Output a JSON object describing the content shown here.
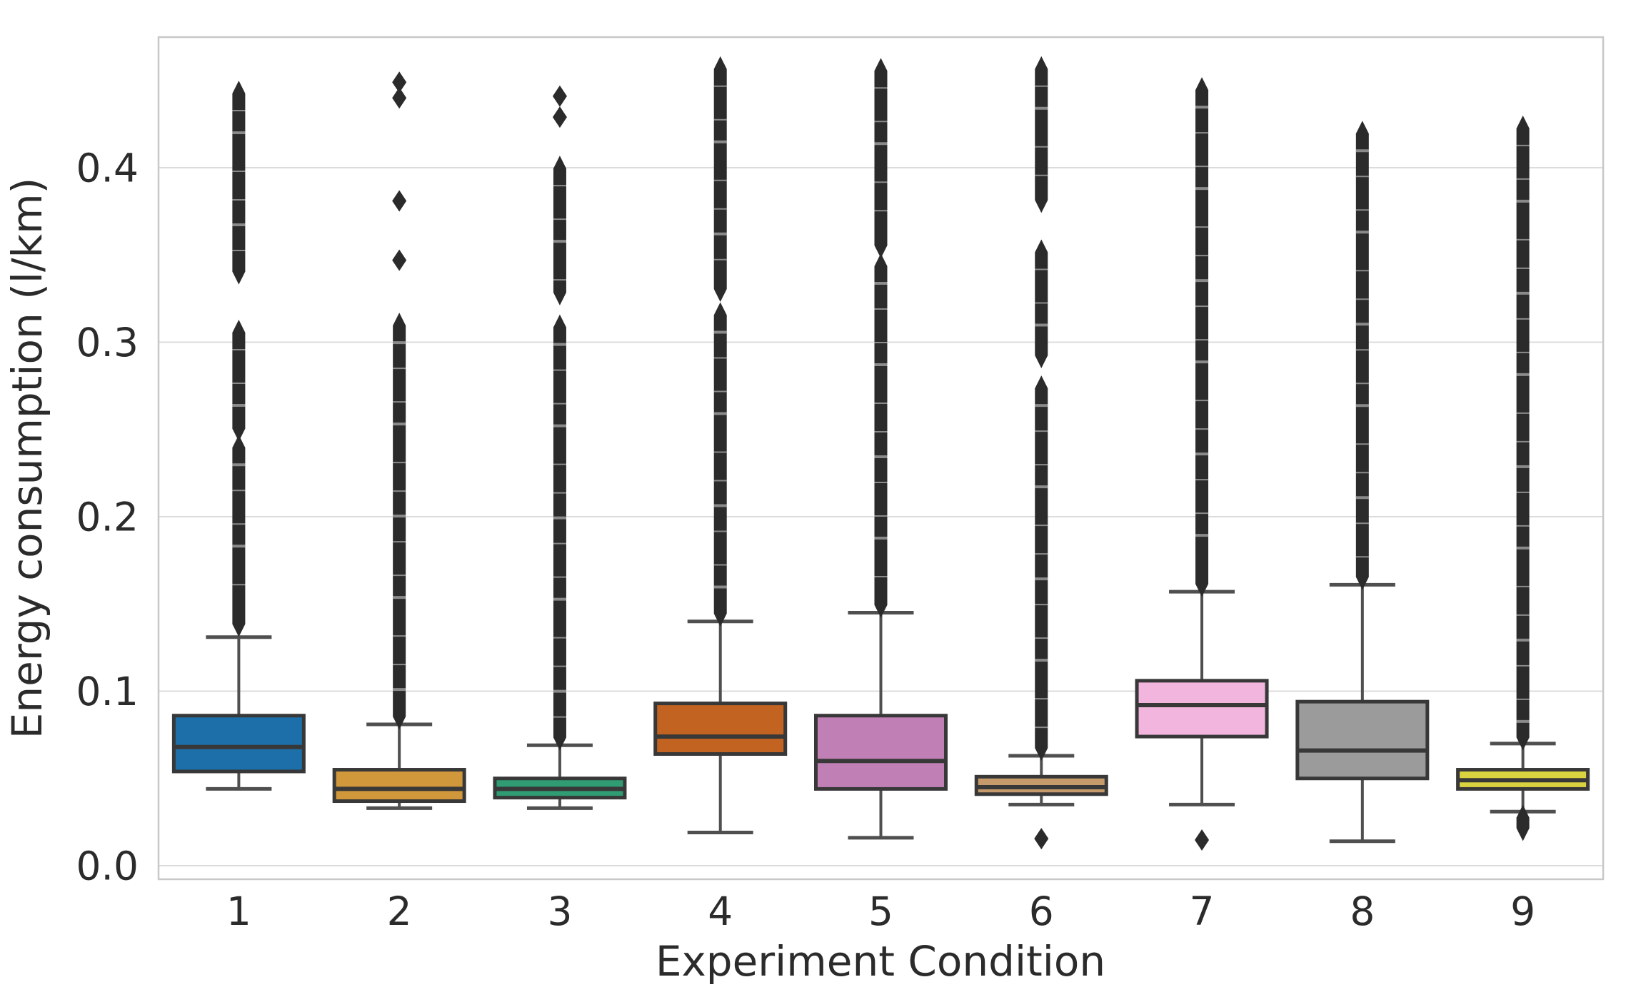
{
  "chart_data": {
    "type": "box",
    "title": "",
    "xlabel": "Experiment Condition",
    "ylabel": "Energy consumption (l/km)",
    "categories": [
      "1",
      "2",
      "3",
      "4",
      "5",
      "6",
      "7",
      "8",
      "9"
    ],
    "yticks": [
      "0.0",
      "0.1",
      "0.2",
      "0.3",
      "0.4"
    ],
    "ytick_values": [
      0.0,
      0.1,
      0.2,
      0.3,
      0.4
    ],
    "ylim": [
      -0.008,
      0.475
    ],
    "grid": true,
    "legend": false,
    "colors": {
      "background": "#ffffff",
      "grid": "#dcdcdc",
      "spine": "#c8c8c8",
      "whisker": "#4f4f4f",
      "box_edge": "#383838",
      "median": "#383838",
      "outlier": "#2b2b2b",
      "tick_text": "#2b2b2b"
    },
    "boxes": [
      {
        "label": "1",
        "color": "#1c6fa8",
        "whisker_low": 0.044,
        "q1": 0.054,
        "median": 0.068,
        "q3": 0.086,
        "whisker_high": 0.131,
        "outlier_segments": [
          [
            0.136,
            0.242
          ],
          [
            0.248,
            0.308
          ],
          [
            0.338,
            0.445
          ]
        ],
        "outlier_points": []
      },
      {
        "label": "2",
        "color": "#d0983a",
        "whisker_low": 0.033,
        "q1": 0.037,
        "median": 0.044,
        "q3": 0.055,
        "whisker_high": 0.081,
        "outlier_segments": [
          [
            0.083,
            0.312
          ]
        ],
        "outlier_points": [
          0.347,
          0.381,
          0.44,
          0.449
        ]
      },
      {
        "label": "3",
        "color": "#2f9c74",
        "whisker_low": 0.033,
        "q1": 0.039,
        "median": 0.044,
        "q3": 0.05,
        "whisker_high": 0.069,
        "outlier_segments": [
          [
            0.071,
            0.311
          ],
          [
            0.326,
            0.402
          ]
        ],
        "outlier_points": [
          0.429,
          0.441
        ]
      },
      {
        "label": "4",
        "color": "#c36321",
        "whisker_low": 0.019,
        "q1": 0.064,
        "median": 0.074,
        "q3": 0.093,
        "whisker_high": 0.14,
        "outlier_segments": [
          [
            0.142,
            0.318
          ],
          [
            0.328,
            0.459
          ]
        ],
        "outlier_points": []
      },
      {
        "label": "5",
        "color": "#c180b5",
        "whisker_low": 0.016,
        "q1": 0.044,
        "median": 0.06,
        "q3": 0.086,
        "whisker_high": 0.145,
        "outlier_segments": [
          [
            0.147,
            0.346
          ],
          [
            0.353,
            0.458
          ]
        ],
        "outlier_points": []
      },
      {
        "label": "6",
        "color": "#c79a6b",
        "whisker_low": 0.035,
        "q1": 0.041,
        "median": 0.045,
        "q3": 0.051,
        "whisker_high": 0.063,
        "outlier_segments": [
          [
            0.065,
            0.276
          ],
          [
            0.29,
            0.354
          ],
          [
            0.379,
            0.459
          ]
        ],
        "outlier_points": [
          0.0155
        ]
      },
      {
        "label": "7",
        "color": "#f2b6de",
        "whisker_low": 0.035,
        "q1": 0.074,
        "median": 0.092,
        "q3": 0.106,
        "whisker_high": 0.157,
        "outlier_segments": [
          [
            0.159,
            0.447
          ]
        ],
        "outlier_points": [
          0.0147
        ]
      },
      {
        "label": "8",
        "color": "#9b9b9b",
        "whisker_low": 0.014,
        "q1": 0.05,
        "median": 0.066,
        "q3": 0.094,
        "whisker_high": 0.161,
        "outlier_segments": [
          [
            0.163,
            0.422
          ]
        ],
        "outlier_points": []
      },
      {
        "label": "9",
        "color": "#d9d33f",
        "whisker_low": 0.031,
        "q1": 0.044,
        "median": 0.049,
        "q3": 0.055,
        "whisker_high": 0.07,
        "outlier_segments": [
          [
            0.019,
            0.03
          ],
          [
            0.071,
            0.425
          ]
        ],
        "outlier_points": []
      }
    ]
  }
}
